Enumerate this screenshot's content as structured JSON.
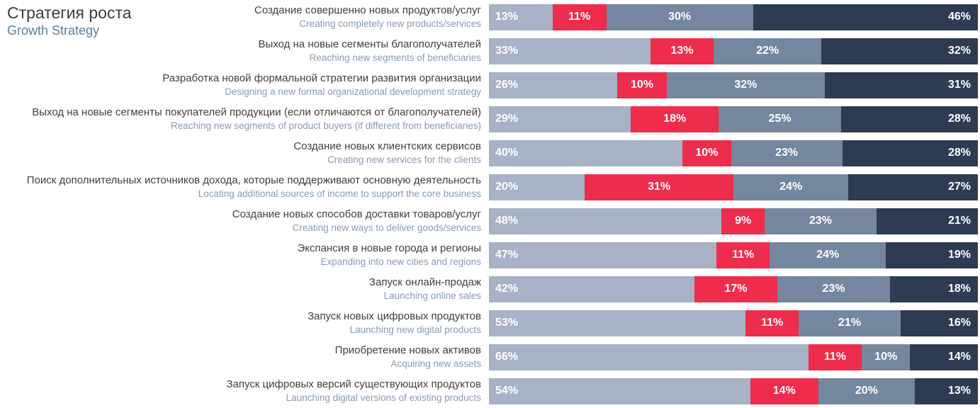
{
  "title": {
    "ru": "Стратегия роста",
    "en": "Growth Strategy"
  },
  "chart_data": {
    "type": "bar",
    "orientation": "horizontal",
    "stacked": true,
    "title": "Стратегия роста / Growth Strategy",
    "value_suffix": "%",
    "legend": "none",
    "series_colors": [
      "#a8b2c6",
      "#ee2c4c",
      "#75869f",
      "#2d3c52"
    ],
    "rows": [
      {
        "label_ru": "Создание совершенно новых продуктов/услуг",
        "label_en": "Creating completely new products/services",
        "values": [
          13,
          11,
          30,
          46
        ]
      },
      {
        "label_ru": "Выход на новые сегменты благополучателей",
        "label_en": "Reaching new segments of beneficiaries",
        "values": [
          33,
          13,
          22,
          32
        ]
      },
      {
        "label_ru": "Разработка новой формальной стратегии развития организации",
        "label_en": "Designing a new formal organizational development strategy",
        "values": [
          26,
          10,
          32,
          31
        ]
      },
      {
        "label_ru": "Выход на новые сегменты покупателей продукции (если отличаются от благополучателей)",
        "label_en": "Reaching new segments of product buyers (if different from beneficiaries)",
        "values": [
          29,
          18,
          25,
          28
        ]
      },
      {
        "label_ru": "Создание новых клиентских сервисов",
        "label_en": "Creating new services for the clients",
        "values": [
          40,
          10,
          23,
          28
        ]
      },
      {
        "label_ru": "Поиск дополнительных источников дохода, которые поддерживают основную деятельность",
        "label_en": "Locating additional sources of income to support the core business",
        "values": [
          20,
          31,
          24,
          27
        ]
      },
      {
        "label_ru": "Создание новых способов доставки товаров/услуг",
        "label_en": "Creating new ways to deliver goods/services",
        "values": [
          48,
          9,
          23,
          21
        ]
      },
      {
        "label_ru": "Экспансия в новые города и регионы",
        "label_en": "Expanding into new cities and regions",
        "values": [
          47,
          11,
          24,
          19
        ]
      },
      {
        "label_ru": "Запуск онлайн-продаж",
        "label_en": "Launching online sales",
        "values": [
          42,
          17,
          23,
          18
        ]
      },
      {
        "label_ru": "Запуск новых цифровых продуктов",
        "label_en": "Launching new digital products",
        "values": [
          53,
          11,
          21,
          16
        ]
      },
      {
        "label_ru": "Приобретение новых активов",
        "label_en": "Acquiring new assets",
        "values": [
          66,
          11,
          10,
          14
        ]
      },
      {
        "label_ru": "Запуск цифровых версий существующих продуктов",
        "label_en": "Launching digital versions of existing products",
        "values": [
          54,
          14,
          20,
          13
        ]
      }
    ]
  }
}
